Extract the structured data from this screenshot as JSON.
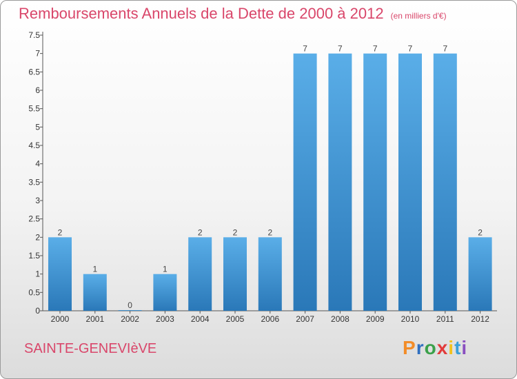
{
  "header": {
    "title": "Remboursements Annuels de la Dette de 2000 à 2012",
    "subtitle": "(en milliers d'€)"
  },
  "footer": {
    "city": "SAINTE-GENEVIèVE",
    "logo_text": "Proxiti",
    "logo_colors": [
      "#f28c28",
      "#2f6fc0",
      "#3aa04a",
      "#e23b3b",
      "#f2c21d",
      "#3aa0d8",
      "#8a4fc0"
    ]
  },
  "colors": {
    "bar_light": "#5aaee8",
    "bar_dark": "#2a78b8",
    "title": "#d9466a"
  },
  "chart_data": {
    "type": "bar",
    "categories": [
      "2000",
      "2001",
      "2002",
      "2003",
      "2004",
      "2005",
      "2006",
      "2007",
      "2008",
      "2009",
      "2010",
      "2011",
      "2012"
    ],
    "values": [
      2,
      1,
      0,
      1,
      2,
      2,
      2,
      7,
      7,
      7,
      7,
      7,
      2
    ],
    "data_labels": [
      "2",
      "1",
      "0",
      "1",
      "2",
      "2",
      "2",
      "7",
      "7",
      "7",
      "7",
      "7",
      "2"
    ],
    "y_ticks": [
      "0",
      "0.5",
      "1",
      "1.5",
      "2",
      "2.5",
      "3",
      "3.5",
      "4",
      "4.5",
      "5",
      "5.5",
      "6",
      "6.5",
      "7",
      "7.5"
    ],
    "ylim": [
      0,
      7.5
    ],
    "grid": false
  }
}
